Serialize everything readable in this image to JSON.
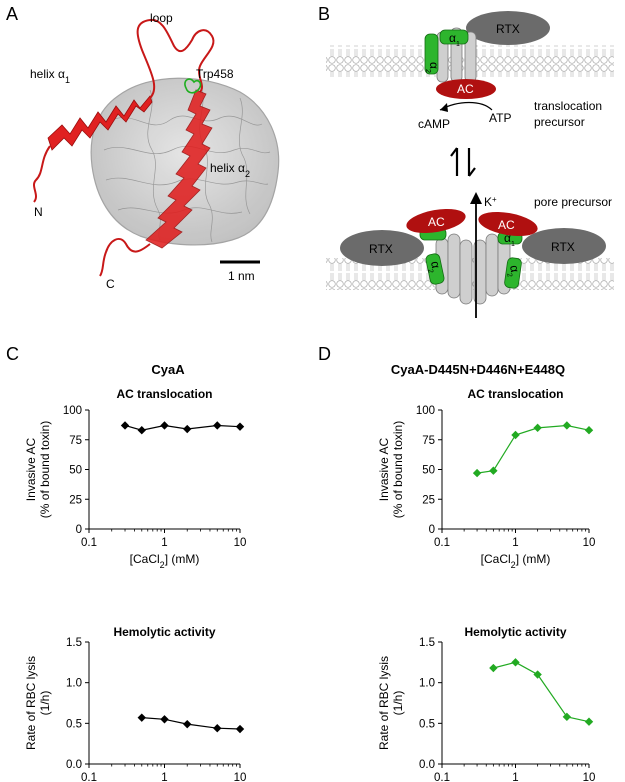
{
  "panel_letters": {
    "a": "A",
    "b": "B",
    "c": "C",
    "d": "D"
  },
  "panel_a": {
    "loop": "loop",
    "helix1": "helix α",
    "helix1_sub": "1",
    "trp": "Trp458",
    "helix2": "helix α",
    "helix2_sub": "2",
    "n_term": "N",
    "c_term": "C",
    "scale": "1 nm"
  },
  "panel_b": {
    "rtx": "RTX",
    "ac": "AC",
    "alpha1": "α",
    "alpha1_sub": "1",
    "alpha2": "α",
    "alpha2_sub": "2",
    "camp": "cAMP",
    "atp": "ATP",
    "translocation": "translocation",
    "precursor": "precursor",
    "kplus": "K",
    "kplus_sup": "+",
    "pore_precursor": "pore precursor"
  },
  "panel_c": {
    "title": "CyaA",
    "top_title": "AC translocation",
    "bottom_title": "Hemolytic activity"
  },
  "panel_d": {
    "title": "CyaA-D445N+D446N+E448Q",
    "top_title": "AC translocation",
    "bottom_title": "Hemolytic activity"
  },
  "axes_text": {
    "x_label": "[CaCl",
    "x_label_sub": "2",
    "x_label_end": "] (mM)",
    "y_top_line1": "Invasive AC",
    "y_top_line2": "(% of bound toxin)",
    "y_bot_line1": "Rate of RBC lysis",
    "y_bot_line2": "(1/h)",
    "x_ticks": [
      "0.1",
      "1",
      "10"
    ],
    "y_top_ticks": [
      "0",
      "25",
      "50",
      "75",
      "100"
    ],
    "y_bot_ticks": [
      "0.0",
      "0.5",
      "1.0",
      "1.5"
    ]
  },
  "colors": {
    "black_series": "#000000",
    "green_series": "#22aa22",
    "helix_red": "#e02020",
    "ac_red": "#b01010",
    "rtx_gray": "#6b6b6b",
    "green_helix": "#2db52d"
  },
  "chart_data": [
    {
      "type": "line",
      "panel": "C",
      "title": "AC translocation",
      "xscale": "log",
      "xlim": [
        0.1,
        10
      ],
      "ylim": [
        0,
        100
      ],
      "xlabel": "[CaCl2] (mM)",
      "ylabel": "Invasive AC (% of bound toxin)",
      "x": [
        0.3,
        0.5,
        1,
        2,
        5,
        10
      ],
      "y": [
        87,
        83,
        87,
        84,
        87,
        86
      ],
      "color": "#000000"
    },
    {
      "type": "line",
      "panel": "C",
      "title": "Hemolytic activity",
      "xscale": "log",
      "xlim": [
        0.1,
        10
      ],
      "ylim": [
        0,
        1.5
      ],
      "xlabel": "[CaCl2] (mM)",
      "ylabel": "Rate of RBC lysis (1/h)",
      "x": [
        0.5,
        1,
        2,
        5,
        10
      ],
      "y": [
        0.57,
        0.55,
        0.49,
        0.44,
        0.43
      ],
      "color": "#000000"
    },
    {
      "type": "line",
      "panel": "D",
      "title": "AC translocation",
      "xscale": "log",
      "xlim": [
        0.1,
        10
      ],
      "ylim": [
        0,
        100
      ],
      "xlabel": "[CaCl2] (mM)",
      "ylabel": "Invasive AC (% of bound toxin)",
      "x": [
        0.3,
        0.5,
        1,
        2,
        5,
        10
      ],
      "y": [
        47,
        49,
        79,
        85,
        87,
        83
      ],
      "color": "#22aa22"
    },
    {
      "type": "line",
      "panel": "D",
      "title": "Hemolytic activity",
      "xscale": "log",
      "xlim": [
        0.1,
        10
      ],
      "ylim": [
        0,
        1.5
      ],
      "xlabel": "[CaCl2] (mM)",
      "ylabel": "Rate of RBC lysis (1/h)",
      "x": [
        0.5,
        1,
        2,
        5,
        10
      ],
      "y": [
        1.18,
        1.25,
        1.1,
        0.58,
        0.52
      ],
      "color": "#22aa22"
    }
  ]
}
